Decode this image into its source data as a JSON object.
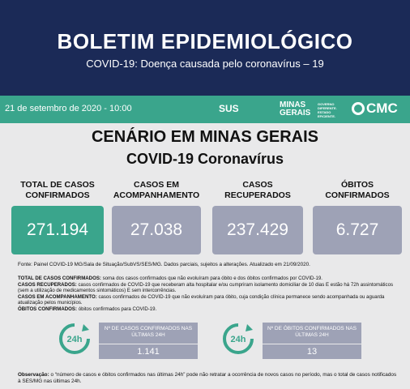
{
  "header": {
    "title": "BOLETIM EPIDEMIOLÓGICO",
    "subtitle": "COVID-19: Doença causada pelo coronavírus – 19"
  },
  "strip": {
    "date": "21 de setembro de 2020 - 10:00",
    "logos": [
      "SUS",
      "MINAS GERAIS",
      "GOVERNO DIFERENTE. ESTADO EFICIENTE.",
      "CMC"
    ]
  },
  "section": {
    "title": "CENÁRIO EM MINAS GERAIS",
    "subtitle": "COVID-19 Coronavírus"
  },
  "cards": [
    {
      "label": "TOTAL DE CASOS CONFIRMADOS",
      "value": "271.194"
    },
    {
      "label": "CASOS EM ACOMPANHAMENTO",
      "value": "27.038"
    },
    {
      "label": "CASOS RECUPERADOS",
      "value": "237.429"
    },
    {
      "label": "ÓBITOS CONFIRMADOS",
      "value": "6.727"
    }
  ],
  "source": "Fonte: Painel COVID-19 MG/Sala de Situação/SubVS/SES/MG. Dados parciais, sujeitos a alterações. Atualizado em 21/09/2020.",
  "definitions": [
    {
      "term": "TOTAL DE CASOS CONFIRMADOS:",
      "text": "soma dos casos confirmados que não evoluíram para óbito e dos óbitos confirmados por COVID-19."
    },
    {
      "term": "CASOS RECUPERADOS:",
      "text": "casos confirmados de COVID-19 que receberam alta hospitalar e/ou cumpriram isolamento domiciliar de 10 dias E estão há 72h assintomáticos (sem a utilização de medicamentos sintomáticos) E sem intercorrências."
    },
    {
      "term": "CASOS EM ACOMPANHAMENTO:",
      "text": "casos confirmados de COVID-19 que não evoluíram para óbito, cuja condição clínica permanece sendo acompanhada ou aguarda atualização pelos municípios."
    },
    {
      "term": "ÓBITOS CONFIRMADOS:",
      "text": "óbitos confirmados para COVID-19."
    }
  ],
  "icon_label": "24h",
  "daily": [
    {
      "label": "Nº DE CASOS CONFIRMADOS NAS ÚLTIMAS 24H",
      "value": "1.141"
    },
    {
      "label": "Nº DE ÓBITOS CONFIRMADOS NAS ÚLTIMAS 24H",
      "value": "13"
    }
  ],
  "observation": {
    "term": "Observação:",
    "text": "o “número de casos e óbitos confirmados nas últimas 24h” pode não retratar a ocorrência de novos casos no período, mas o total de casos notificados à SES/MG nas últimas 24h."
  }
}
